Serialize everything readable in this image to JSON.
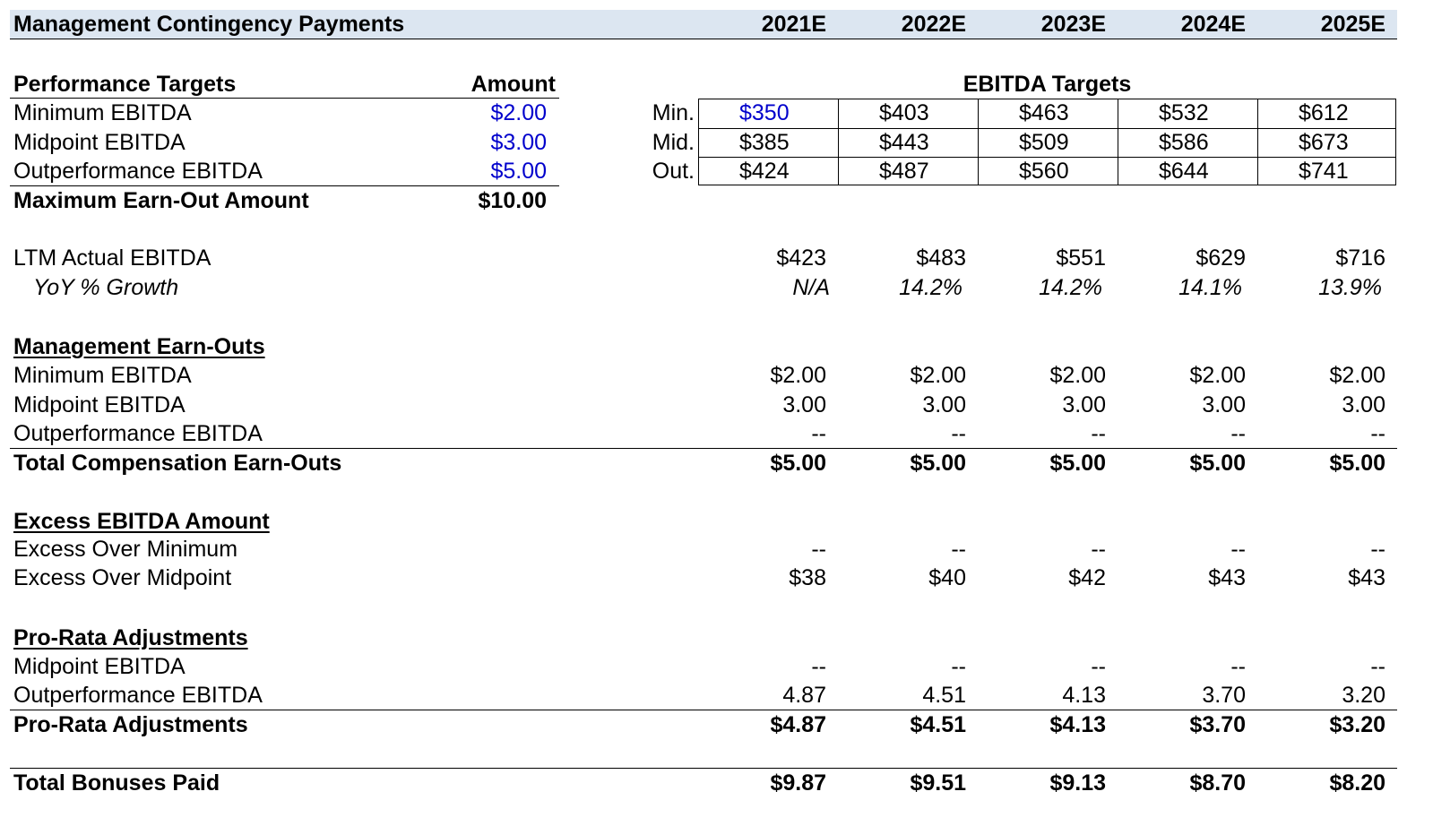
{
  "header": {
    "title": "Management Contingency Payments",
    "years": [
      "2021E",
      "2022E",
      "2023E",
      "2024E",
      "2025E"
    ]
  },
  "performance": {
    "heading": "Performance Targets",
    "amount_heading": "Amount",
    "rows": [
      {
        "label": "Minimum EBITDA",
        "amount": "$2.00"
      },
      {
        "label": "Midpoint EBITDA",
        "amount": "$3.00"
      },
      {
        "label": "Outperformance EBITDA",
        "amount": "$5.00"
      }
    ],
    "max_label": "Maximum Earn-Out Amount",
    "max_amount": "$10.00"
  },
  "ebitda_targets": {
    "heading": "EBITDA Targets",
    "rows": [
      {
        "label": "Min.",
        "values": [
          "$350",
          "$403",
          "$463",
          "$532",
          "$612"
        ]
      },
      {
        "label": "Mid.",
        "values": [
          "$385",
          "$443",
          "$509",
          "$586",
          "$673"
        ]
      },
      {
        "label": "Out.",
        "values": [
          "$424",
          "$487",
          "$560",
          "$644",
          "$741"
        ]
      }
    ]
  },
  "ltm": {
    "label": "LTM Actual EBITDA",
    "values": [
      "$423",
      "$483",
      "$551",
      "$629",
      "$716"
    ],
    "growth_label": "YoY % Growth",
    "growth": [
      "N/A",
      "14.2%",
      "14.2%",
      "14.1%",
      "13.9%"
    ]
  },
  "earn_outs": {
    "heading": "Management Earn-Outs",
    "rows": [
      {
        "label": "Minimum EBITDA",
        "values": [
          "$2.00",
          "$2.00",
          "$2.00",
          "$2.00",
          "$2.00"
        ]
      },
      {
        "label": "Midpoint EBITDA",
        "values": [
          "3.00",
          "3.00",
          "3.00",
          "3.00",
          "3.00"
        ]
      },
      {
        "label": "Outperformance EBITDA",
        "values": [
          "--",
          "--",
          "--",
          "--",
          "--"
        ]
      }
    ],
    "total_label": "Total Compensation Earn-Outs",
    "total": [
      "$5.00",
      "$5.00",
      "$5.00",
      "$5.00",
      "$5.00"
    ]
  },
  "excess": {
    "heading": "Excess EBITDA Amount",
    "rows": [
      {
        "label": "Excess Over Minimum",
        "values": [
          "--",
          "--",
          "--",
          "--",
          "--"
        ]
      },
      {
        "label": "Excess Over Midpoint",
        "values": [
          "$38",
          "$40",
          "$42",
          "$43",
          "$43"
        ]
      }
    ]
  },
  "pro_rata": {
    "heading": "Pro-Rata Adjustments",
    "rows": [
      {
        "label": "Midpoint EBITDA",
        "values": [
          "--",
          "--",
          "--",
          "--",
          "--"
        ]
      },
      {
        "label": "Outperformance EBITDA",
        "values": [
          "4.87",
          "4.51",
          "4.13",
          "3.70",
          "3.20"
        ]
      }
    ],
    "total_label": "Pro-Rata Adjustments",
    "total": [
      "$4.87",
      "$4.51",
      "$4.13",
      "$3.70",
      "$3.20"
    ]
  },
  "bonuses": {
    "label": "Total Bonuses Paid",
    "values": [
      "$9.87",
      "$9.51",
      "$9.13",
      "$8.70",
      "$8.20"
    ]
  },
  "colors": {
    "header_fill": "#dce6f1",
    "input_blue": "#0000cc"
  }
}
